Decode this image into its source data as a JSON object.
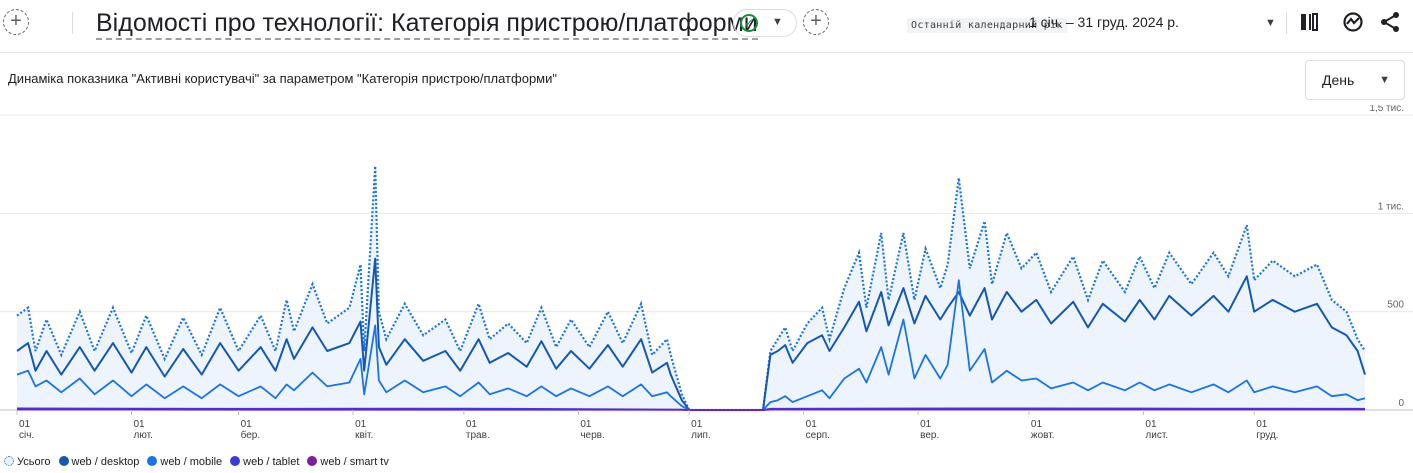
{
  "header": {
    "title": "Відомості про технології: Категорія пристрою/платформи",
    "add_left": "+",
    "add_right": "+",
    "date_label": "Останній календарний рік",
    "date_range": "1 січ. – 31 груд. 2024 р.",
    "icons": [
      "compare-icon",
      "insights-icon",
      "share-icon"
    ],
    "status_color": "#1e8e3e"
  },
  "controls": {
    "period": "День"
  },
  "chart_data": {
    "type": "line",
    "title": "Динаміка показника \"Активні користувачі\" за параметром \"Категорія пристрою/платформи\"",
    "ylim": [
      0,
      1500
    ],
    "y_ticks": [
      {
        "value": 0,
        "label": "0"
      },
      {
        "value": 500,
        "label": "500"
      },
      {
        "value": 1000,
        "label": "1 тис."
      },
      {
        "value": 1500,
        "label": "1,5 тис."
      }
    ],
    "x_ticks": [
      {
        "day": 0,
        "day_label": "01",
        "month_label": "січ."
      },
      {
        "day": 31,
        "day_label": "01",
        "month_label": "лют."
      },
      {
        "day": 60,
        "day_label": "01",
        "month_label": "бер."
      },
      {
        "day": 91,
        "day_label": "01",
        "month_label": "квіт."
      },
      {
        "day": 121,
        "day_label": "01",
        "month_label": "трав."
      },
      {
        "day": 152,
        "day_label": "01",
        "month_label": "черв."
      },
      {
        "day": 182,
        "day_label": "01",
        "month_label": "лип."
      },
      {
        "day": 213,
        "day_label": "01",
        "month_label": "серп."
      },
      {
        "day": 244,
        "day_label": "01",
        "month_label": "вер."
      },
      {
        "day": 274,
        "day_label": "01",
        "month_label": "жовт."
      },
      {
        "day": 305,
        "day_label": "01",
        "month_label": "лист."
      },
      {
        "day": 335,
        "day_label": "01",
        "month_label": "груд."
      }
    ],
    "x_range": [
      0,
      365
    ],
    "grid": true,
    "legend_position": "bottom-left",
    "series": [
      {
        "name": "Усього",
        "color": "#1a73e8",
        "style": "dotted-area",
        "points": [
          [
            0,
            480
          ],
          [
            3,
            520
          ],
          [
            5,
            300
          ],
          [
            8,
            460
          ],
          [
            12,
            280
          ],
          [
            17,
            500
          ],
          [
            21,
            300
          ],
          [
            26,
            520
          ],
          [
            31,
            290
          ],
          [
            35,
            480
          ],
          [
            40,
            260
          ],
          [
            45,
            470
          ],
          [
            50,
            280
          ],
          [
            55,
            520
          ],
          [
            60,
            300
          ],
          [
            66,
            480
          ],
          [
            70,
            300
          ],
          [
            73,
            560
          ],
          [
            75,
            400
          ],
          [
            80,
            640
          ],
          [
            84,
            440
          ],
          [
            90,
            520
          ],
          [
            93,
            740
          ],
          [
            94,
            300
          ],
          [
            97,
            1240
          ],
          [
            98,
            500
          ],
          [
            100,
            360
          ],
          [
            105,
            540
          ],
          [
            110,
            380
          ],
          [
            116,
            460
          ],
          [
            120,
            300
          ],
          [
            125,
            540
          ],
          [
            128,
            360
          ],
          [
            133,
            440
          ],
          [
            138,
            340
          ],
          [
            142,
            520
          ],
          [
            146,
            320
          ],
          [
            150,
            460
          ],
          [
            155,
            320
          ],
          [
            160,
            500
          ],
          [
            164,
            340
          ],
          [
            169,
            540
          ],
          [
            172,
            280
          ],
          [
            176,
            360
          ],
          [
            177,
            280
          ],
          [
            180,
            80
          ],
          [
            182,
            0
          ],
          [
            195,
            0
          ],
          [
            202,
            0
          ],
          [
            204,
            300
          ],
          [
            206,
            360
          ],
          [
            208,
            420
          ],
          [
            210,
            300
          ],
          [
            214,
            440
          ],
          [
            218,
            520
          ],
          [
            220,
            360
          ],
          [
            224,
            620
          ],
          [
            228,
            800
          ],
          [
            230,
            520
          ],
          [
            234,
            900
          ],
          [
            236,
            560
          ],
          [
            240,
            900
          ],
          [
            243,
            560
          ],
          [
            246,
            820
          ],
          [
            250,
            620
          ],
          [
            252,
            740
          ],
          [
            255,
            1180
          ],
          [
            258,
            720
          ],
          [
            262,
            960
          ],
          [
            264,
            640
          ],
          [
            268,
            900
          ],
          [
            272,
            720
          ],
          [
            276,
            800
          ],
          [
            280,
            600
          ],
          [
            286,
            780
          ],
          [
            290,
            560
          ],
          [
            294,
            760
          ],
          [
            300,
            600
          ],
          [
            304,
            780
          ],
          [
            308,
            620
          ],
          [
            312,
            800
          ],
          [
            318,
            640
          ],
          [
            324,
            800
          ],
          [
            328,
            680
          ],
          [
            333,
            940
          ],
          [
            335,
            660
          ],
          [
            340,
            760
          ],
          [
            346,
            680
          ],
          [
            352,
            740
          ],
          [
            356,
            560
          ],
          [
            360,
            500
          ],
          [
            363,
            360
          ],
          [
            365,
            300
          ]
        ]
      },
      {
        "name": "web / desktop",
        "color": "#1558b0",
        "style": "line",
        "points": [
          [
            0,
            300
          ],
          [
            3,
            340
          ],
          [
            5,
            200
          ],
          [
            8,
            300
          ],
          [
            12,
            180
          ],
          [
            17,
            320
          ],
          [
            21,
            200
          ],
          [
            26,
            340
          ],
          [
            31,
            190
          ],
          [
            35,
            320
          ],
          [
            40,
            170
          ],
          [
            45,
            310
          ],
          [
            50,
            180
          ],
          [
            55,
            340
          ],
          [
            60,
            200
          ],
          [
            66,
            320
          ],
          [
            70,
            200
          ],
          [
            73,
            360
          ],
          [
            75,
            260
          ],
          [
            80,
            420
          ],
          [
            84,
            300
          ],
          [
            90,
            340
          ],
          [
            93,
            450
          ],
          [
            94,
            200
          ],
          [
            97,
            770
          ],
          [
            98,
            320
          ],
          [
            100,
            230
          ],
          [
            105,
            360
          ],
          [
            110,
            250
          ],
          [
            116,
            300
          ],
          [
            120,
            200
          ],
          [
            125,
            360
          ],
          [
            128,
            240
          ],
          [
            133,
            290
          ],
          [
            138,
            220
          ],
          [
            142,
            350
          ],
          [
            146,
            210
          ],
          [
            150,
            300
          ],
          [
            155,
            210
          ],
          [
            160,
            330
          ],
          [
            164,
            220
          ],
          [
            169,
            360
          ],
          [
            172,
            190
          ],
          [
            176,
            240
          ],
          [
            177,
            180
          ],
          [
            180,
            50
          ],
          [
            182,
            0
          ],
          [
            202,
            0
          ],
          [
            204,
            280
          ],
          [
            206,
            300
          ],
          [
            208,
            330
          ],
          [
            210,
            240
          ],
          [
            214,
            340
          ],
          [
            218,
            380
          ],
          [
            220,
            300
          ],
          [
            224,
            420
          ],
          [
            228,
            550
          ],
          [
            230,
            400
          ],
          [
            234,
            600
          ],
          [
            236,
            430
          ],
          [
            240,
            620
          ],
          [
            243,
            440
          ],
          [
            246,
            580
          ],
          [
            250,
            460
          ],
          [
            252,
            520
          ],
          [
            255,
            600
          ],
          [
            258,
            480
          ],
          [
            262,
            620
          ],
          [
            264,
            460
          ],
          [
            268,
            600
          ],
          [
            272,
            500
          ],
          [
            276,
            560
          ],
          [
            280,
            440
          ],
          [
            286,
            550
          ],
          [
            290,
            420
          ],
          [
            294,
            540
          ],
          [
            300,
            450
          ],
          [
            304,
            560
          ],
          [
            308,
            460
          ],
          [
            312,
            580
          ],
          [
            318,
            480
          ],
          [
            324,
            580
          ],
          [
            328,
            500
          ],
          [
            333,
            680
          ],
          [
            335,
            500
          ],
          [
            340,
            560
          ],
          [
            346,
            500
          ],
          [
            352,
            540
          ],
          [
            356,
            420
          ],
          [
            360,
            380
          ],
          [
            363,
            300
          ],
          [
            365,
            180
          ]
        ]
      },
      {
        "name": "web / mobile",
        "color": "#1a73e8",
        "style": "line",
        "points": [
          [
            0,
            180
          ],
          [
            3,
            200
          ],
          [
            5,
            120
          ],
          [
            8,
            150
          ],
          [
            12,
            90
          ],
          [
            17,
            160
          ],
          [
            21,
            80
          ],
          [
            26,
            150
          ],
          [
            31,
            70
          ],
          [
            35,
            130
          ],
          [
            40,
            60
          ],
          [
            45,
            120
          ],
          [
            50,
            60
          ],
          [
            55,
            130
          ],
          [
            60,
            70
          ],
          [
            66,
            120
          ],
          [
            70,
            60
          ],
          [
            73,
            130
          ],
          [
            75,
            100
          ],
          [
            80,
            190
          ],
          [
            84,
            120
          ],
          [
            90,
            140
          ],
          [
            93,
            260
          ],
          [
            94,
            80
          ],
          [
            97,
            430
          ],
          [
            98,
            150
          ],
          [
            100,
            90
          ],
          [
            105,
            150
          ],
          [
            110,
            90
          ],
          [
            116,
            120
          ],
          [
            120,
            70
          ],
          [
            125,
            140
          ],
          [
            128,
            80
          ],
          [
            133,
            110
          ],
          [
            138,
            70
          ],
          [
            142,
            120
          ],
          [
            146,
            70
          ],
          [
            150,
            110
          ],
          [
            155,
            70
          ],
          [
            160,
            120
          ],
          [
            164,
            70
          ],
          [
            169,
            130
          ],
          [
            172,
            70
          ],
          [
            176,
            90
          ],
          [
            177,
            70
          ],
          [
            180,
            20
          ],
          [
            182,
            0
          ],
          [
            202,
            0
          ],
          [
            204,
            40
          ],
          [
            206,
            50
          ],
          [
            208,
            70
          ],
          [
            210,
            40
          ],
          [
            214,
            70
          ],
          [
            218,
            100
          ],
          [
            220,
            60
          ],
          [
            224,
            160
          ],
          [
            228,
            210
          ],
          [
            230,
            140
          ],
          [
            234,
            320
          ],
          [
            236,
            180
          ],
          [
            240,
            460
          ],
          [
            243,
            160
          ],
          [
            246,
            280
          ],
          [
            250,
            160
          ],
          [
            252,
            230
          ],
          [
            255,
            660
          ],
          [
            258,
            200
          ],
          [
            262,
            310
          ],
          [
            264,
            140
          ],
          [
            268,
            200
          ],
          [
            272,
            150
          ],
          [
            276,
            160
          ],
          [
            280,
            110
          ],
          [
            286,
            140
          ],
          [
            290,
            100
          ],
          [
            294,
            140
          ],
          [
            300,
            100
          ],
          [
            304,
            140
          ],
          [
            308,
            100
          ],
          [
            312,
            130
          ],
          [
            318,
            90
          ],
          [
            324,
            130
          ],
          [
            328,
            90
          ],
          [
            333,
            150
          ],
          [
            335,
            90
          ],
          [
            340,
            120
          ],
          [
            346,
            90
          ],
          [
            352,
            120
          ],
          [
            356,
            70
          ],
          [
            360,
            80
          ],
          [
            363,
            50
          ],
          [
            365,
            60
          ]
        ]
      },
      {
        "name": "web / tablet",
        "color": "#3b3bd6",
        "style": "line",
        "points": [
          [
            0,
            8
          ],
          [
            60,
            6
          ],
          [
            120,
            7
          ],
          [
            180,
            2
          ],
          [
            182,
            0
          ],
          [
            202,
            0
          ],
          [
            204,
            6
          ],
          [
            260,
            8
          ],
          [
            320,
            7
          ],
          [
            365,
            6
          ]
        ]
      },
      {
        "name": "web / smart tv",
        "color": "#7b1fa2",
        "style": "line",
        "points": [
          [
            0,
            2
          ],
          [
            180,
            1
          ],
          [
            182,
            0
          ],
          [
            202,
            0
          ],
          [
            204,
            2
          ],
          [
            365,
            2
          ]
        ]
      }
    ]
  }
}
